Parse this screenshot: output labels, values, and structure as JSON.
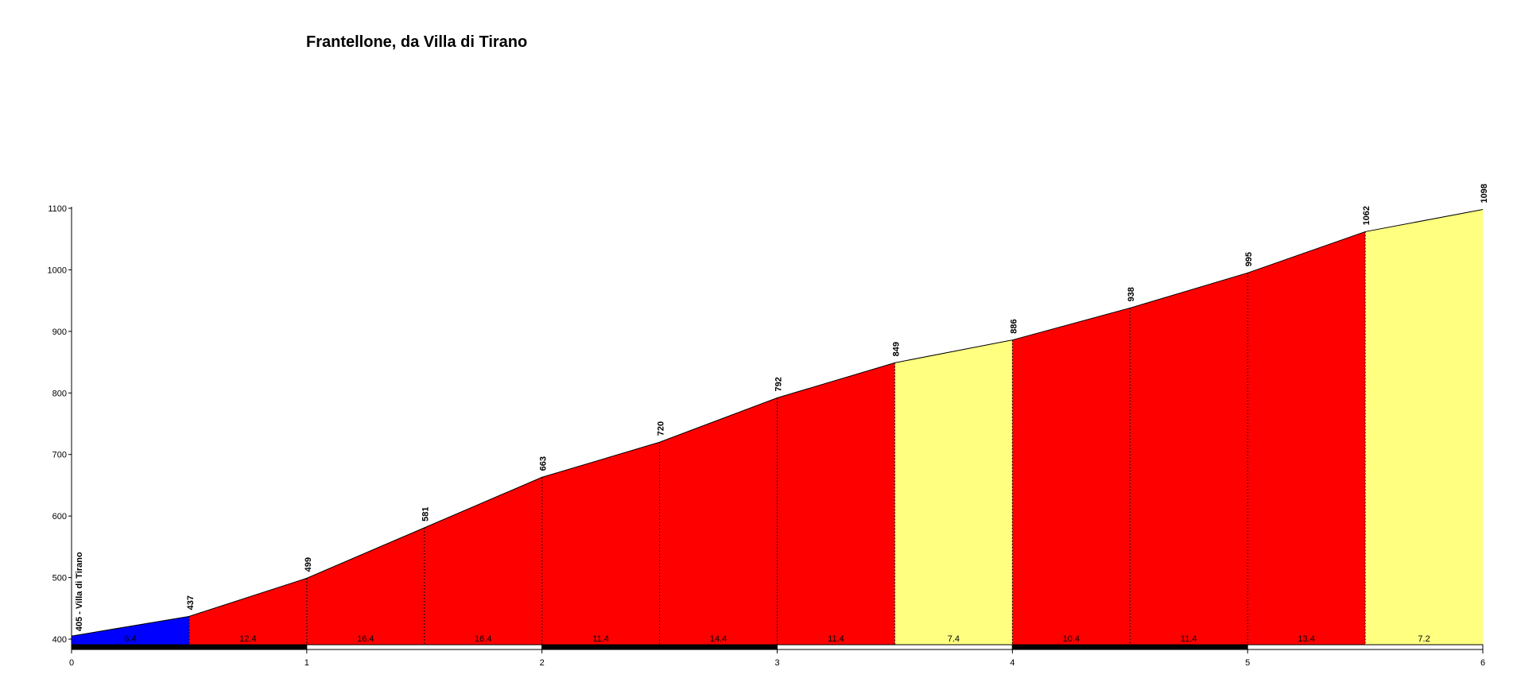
{
  "chart_data": {
    "type": "area",
    "title": "Frantellone, da Villa di Tirano",
    "xlabel": "",
    "ylabel": "",
    "xlim": [
      0,
      6
    ],
    "ylim": [
      400,
      1100
    ],
    "x_ticks": [
      "0",
      "1",
      "2",
      "3",
      "4",
      "5",
      "6"
    ],
    "y_ticks": [
      "400",
      "500",
      "600",
      "700",
      "800",
      "900",
      "1000",
      "1100"
    ],
    "grid": false,
    "start_label": "405 - Villa di Tirano",
    "points": [
      {
        "x": 0,
        "y": 405,
        "label": ""
      },
      {
        "x": 0.5,
        "y": 437,
        "label": "437"
      },
      {
        "x": 1,
        "y": 499,
        "label": "499"
      },
      {
        "x": 1.5,
        "y": 581,
        "label": "581"
      },
      {
        "x": 2,
        "y": 663,
        "label": "663"
      },
      {
        "x": 2.5,
        "y": 720,
        "label": "720"
      },
      {
        "x": 3,
        "y": 792,
        "label": "792"
      },
      {
        "x": 3.5,
        "y": 849,
        "label": "849"
      },
      {
        "x": 4,
        "y": 886,
        "label": "886"
      },
      {
        "x": 4.5,
        "y": 938,
        "label": "938"
      },
      {
        "x": 5,
        "y": 995,
        "label": "995"
      },
      {
        "x": 5.5,
        "y": 1062,
        "label": "1062"
      },
      {
        "x": 6,
        "y": 1098,
        "label": "1098"
      }
    ],
    "segments": [
      {
        "from": 0,
        "to": 0.5,
        "gradient": "6.4",
        "color": "#0000ff"
      },
      {
        "from": 0.5,
        "to": 1,
        "gradient": "12.4",
        "color": "#ff0000"
      },
      {
        "from": 1,
        "to": 1.5,
        "gradient": "16.4",
        "color": "#ff0000"
      },
      {
        "from": 1.5,
        "to": 2,
        "gradient": "16.4",
        "color": "#ff0000"
      },
      {
        "from": 2,
        "to": 2.5,
        "gradient": "11.4",
        "color": "#ff0000"
      },
      {
        "from": 2.5,
        "to": 3,
        "gradient": "14.4",
        "color": "#ff0000"
      },
      {
        "from": 3,
        "to": 3.5,
        "gradient": "11.4",
        "color": "#ff0000"
      },
      {
        "from": 3.5,
        "to": 4,
        "gradient": "7.4",
        "color": "#ffff80"
      },
      {
        "from": 4,
        "to": 4.5,
        "gradient": "10.4",
        "color": "#ff0000"
      },
      {
        "from": 4.5,
        "to": 5,
        "gradient": "11.4",
        "color": "#ff0000"
      },
      {
        "from": 5,
        "to": 5.5,
        "gradient": "13.4",
        "color": "#ff0000"
      },
      {
        "from": 5.5,
        "to": 6,
        "gradient": "7.2",
        "color": "#ffff80"
      }
    ]
  }
}
